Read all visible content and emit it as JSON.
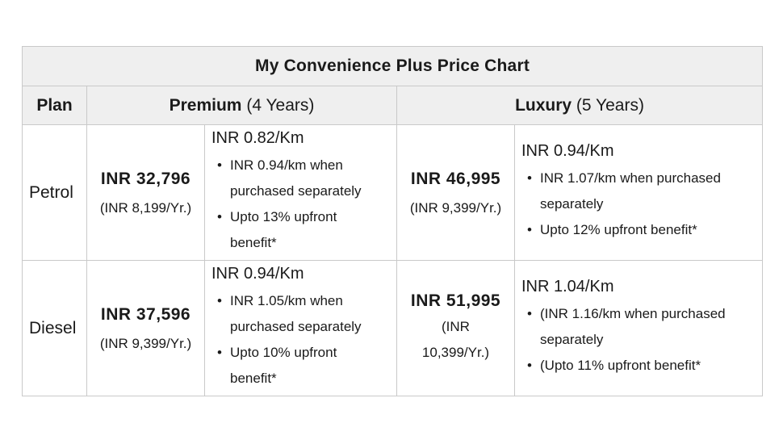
{
  "title": "My Convenience Plus Price Chart",
  "headers": {
    "plan": "Plan",
    "premium_name": "Premium",
    "premium_term": "(4 Years)",
    "luxury_name": "Luxury",
    "luxury_term": "(5 Years)"
  },
  "rows": [
    {
      "plan": "Petrol",
      "premium": {
        "price": "INR 32,796",
        "per_year": "(INR 8,199/Yr.)",
        "rate": "INR 0.82/Km",
        "bullets": [
          "INR 0.94/km when purchased separately",
          "Upto 13% upfront benefit*"
        ]
      },
      "luxury": {
        "price": "INR 46,995",
        "per_year": "(INR 9,399/Yr.)",
        "rate": "INR 0.94/Km",
        "bullets": [
          "INR 1.07/km when purchased separately",
          "Upto 12% upfront benefit*"
        ]
      }
    },
    {
      "plan": "Diesel",
      "premium": {
        "price": "INR 37,596",
        "per_year": "(INR 9,399/Yr.)",
        "rate": "INR 0.94/Km",
        "bullets": [
          "INR 1.05/km when purchased separately",
          "Upto 10% upfront benefit*"
        ]
      },
      "luxury": {
        "price": "INR 51,995",
        "per_year": "(INR 10,399/Yr.)",
        "rate": "INR 1.04/Km",
        "bullets": [
          "(INR 1.16/km when purchased separately",
          "(Upto 11% upfront benefit*"
        ]
      }
    }
  ]
}
